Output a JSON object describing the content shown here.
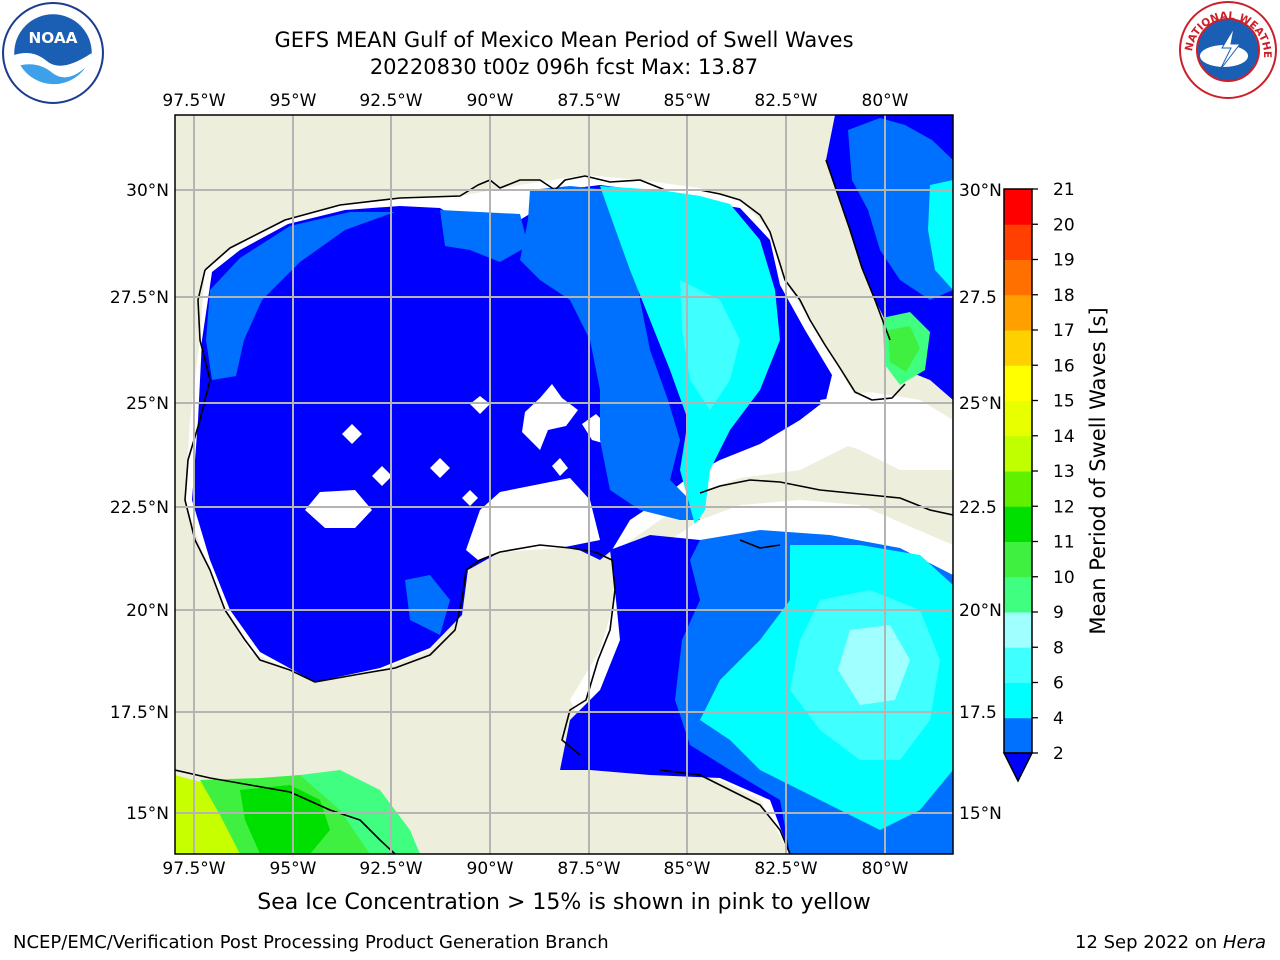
{
  "title": {
    "line1": "GEFS MEAN Gulf of Mexico Mean Period of Swell Waves",
    "line2": "20220830 t00z 096h fcst   Max: 13.87"
  },
  "map": {
    "lon_labels": [
      "97.5°W",
      "95°W",
      "92.5°W",
      "90°W",
      "87.5°W",
      "85°W",
      "82.5°W",
      "80°W"
    ],
    "lat_labels": [
      "30°N",
      "27.5°N",
      "25°N",
      "22.5°N",
      "20°N",
      "17.5°N",
      "15°N"
    ],
    "lat_labels_right": [
      "30°N",
      "27.5",
      "25°N",
      "22.5",
      "20°N",
      "17.5",
      "15°N"
    ],
    "colors": {
      "land": "#eeeedd",
      "grid": "#b4b4b4"
    }
  },
  "colorbar": {
    "label": "Mean Period of Swell Waves [s]",
    "ticks": [
      "2",
      "4",
      "6",
      "8",
      "9",
      "10",
      "11",
      "12",
      "13",
      "14",
      "15",
      "16",
      "17",
      "18",
      "19",
      "20",
      "21"
    ],
    "colors": [
      "#0000ff",
      "#0070ff",
      "#00ffff",
      "#40ffff",
      "#a0ffff",
      "#40ff80",
      "#40f040",
      "#00e000",
      "#60f000",
      "#c0ff00",
      "#e8ff00",
      "#ffff00",
      "#ffd000",
      "#ffa000",
      "#ff7000",
      "#ff4000",
      "#ff0000"
    ]
  },
  "footer": {
    "ice_note": "Sea Ice Concentration > 15% is shown in pink to yellow",
    "credit": "NCEP/EMC/Verification Post Processing Product Generation Branch",
    "date": "12 Sep 2022 on ",
    "host": "Hera"
  },
  "logos": {
    "noaa_text": "NOAA",
    "nws_text": "NATIONAL WEATHER SERVICE"
  }
}
